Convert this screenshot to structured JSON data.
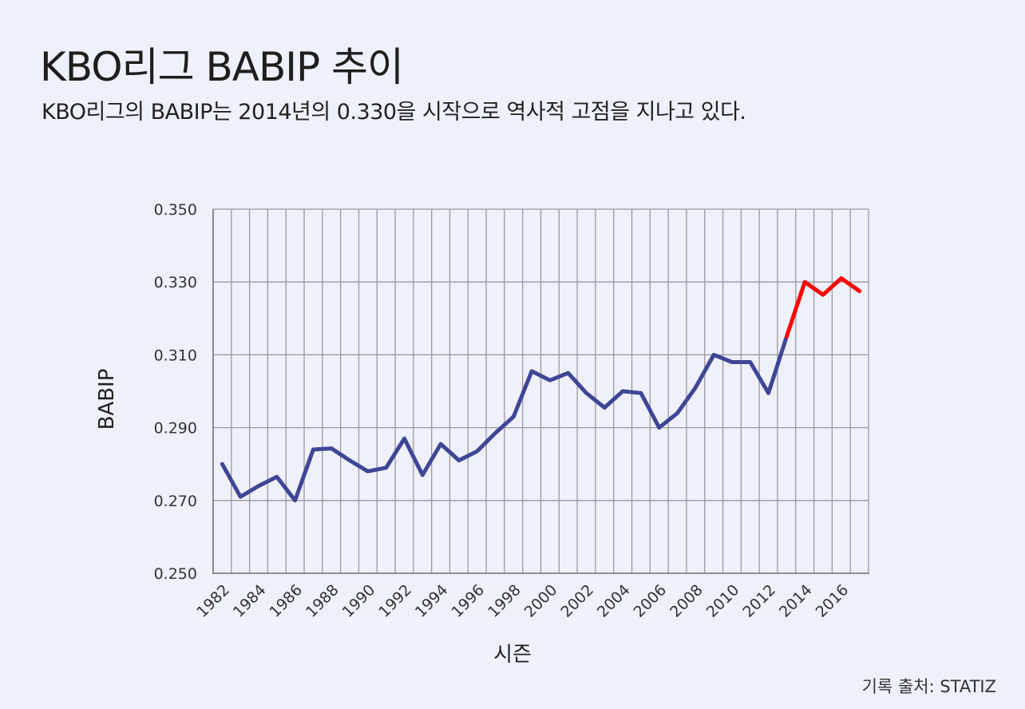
{
  "header": {
    "title": "KBO리그 BABIP 추이",
    "subtitle": "KBO리그의 BABIP는 2014년의 0.330을 시작으로 역사적 고점을 지나고 있다."
  },
  "footer": {
    "source": "기록 출처: STATIZ"
  },
  "colors": {
    "background": "#eef0fb",
    "series_main": "#3f4696",
    "series_highlight": "#ff0000",
    "grid": "#9a9a9a"
  },
  "chart_data": {
    "type": "line",
    "xlabel": "시즌",
    "ylabel": "BABIP",
    "ylim": [
      0.25,
      0.35
    ],
    "yticks": [
      0.25,
      0.27,
      0.29,
      0.31,
      0.33,
      0.35
    ],
    "ytick_labels": [
      "0.250",
      "0.270",
      "0.290",
      "0.310",
      "0.330",
      "0.350"
    ],
    "xlim": [
      1982,
      2017
    ],
    "xtick_labels": [
      "1982",
      "1984",
      "1986",
      "1988",
      "1990",
      "1992",
      "1994",
      "1996",
      "1998",
      "2000",
      "2002",
      "2004",
      "2006",
      "2008",
      "2010",
      "2012",
      "2014",
      "2016"
    ],
    "grid": true,
    "highlight_from": 2013,
    "x": [
      1982,
      1983,
      1984,
      1985,
      1986,
      1987,
      1988,
      1989,
      1990,
      1991,
      1992,
      1993,
      1994,
      1995,
      1996,
      1997,
      1998,
      1999,
      2000,
      2001,
      2002,
      2003,
      2004,
      2005,
      2006,
      2007,
      2008,
      2009,
      2010,
      2011,
      2012,
      2013,
      2014,
      2015,
      2016,
      2017
    ],
    "y": [
      0.28,
      0.271,
      0.274,
      0.2765,
      0.27,
      0.284,
      0.2843,
      0.281,
      0.278,
      0.279,
      0.287,
      0.277,
      0.2855,
      0.281,
      0.2835,
      0.2885,
      0.293,
      0.3055,
      0.303,
      0.305,
      0.2995,
      0.2955,
      0.3,
      0.2995,
      0.29,
      0.294,
      0.301,
      0.31,
      0.308,
      0.308,
      0.2995,
      0.315,
      0.33,
      0.3265,
      0.331,
      0.3275
    ]
  }
}
